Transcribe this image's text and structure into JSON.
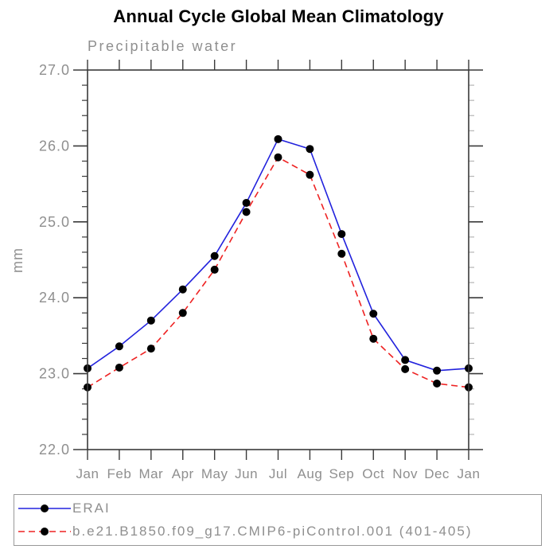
{
  "page": {
    "background": "#ffffff",
    "title_color": "#000000"
  },
  "chart_data": {
    "type": "line",
    "title": "Annual Cycle Global Mean Climatology",
    "subtitle": "Precipitable water",
    "ylabel": "mm",
    "xlabel": "",
    "categories": [
      "Jan",
      "Feb",
      "Mar",
      "Apr",
      "May",
      "Jun",
      "Jul",
      "Aug",
      "Sep",
      "Oct",
      "Nov",
      "Dec",
      "Jan"
    ],
    "ylim": [
      22.0,
      27.0
    ],
    "ytick_major": [
      22.0,
      23.0,
      24.0,
      25.0,
      26.0,
      27.0
    ],
    "ytick_labels": [
      "22.0",
      "23.0",
      "24.0",
      "25.0",
      "26.0",
      "27.0"
    ],
    "ytick_minor_step": 0.2,
    "grid": false,
    "legend_position": "bottom",
    "axis_color": "#3a3a3a",
    "minor_tick_right_color": "#b4b4b4",
    "label_color": "#8f8f8f",
    "legend_border_color": "#999999",
    "series": [
      {
        "name": "ERAI",
        "color": "#2222dd",
        "line_style": "solid",
        "marker": "circle",
        "marker_color": "#000000",
        "values": [
          23.07,
          23.36,
          23.7,
          24.11,
          24.55,
          25.25,
          26.09,
          25.96,
          24.84,
          23.79,
          23.18,
          23.04,
          23.07
        ]
      },
      {
        "name": "b.e21.B1850.f09_g17.CMIP6-piControl.001 (401-405)",
        "color": "#ee2222",
        "line_style": "dashed",
        "marker": "circle",
        "marker_color": "#000000",
        "values": [
          22.82,
          23.08,
          23.33,
          23.8,
          24.37,
          25.13,
          25.85,
          25.62,
          24.58,
          23.46,
          23.06,
          22.87,
          22.82
        ]
      }
    ]
  }
}
